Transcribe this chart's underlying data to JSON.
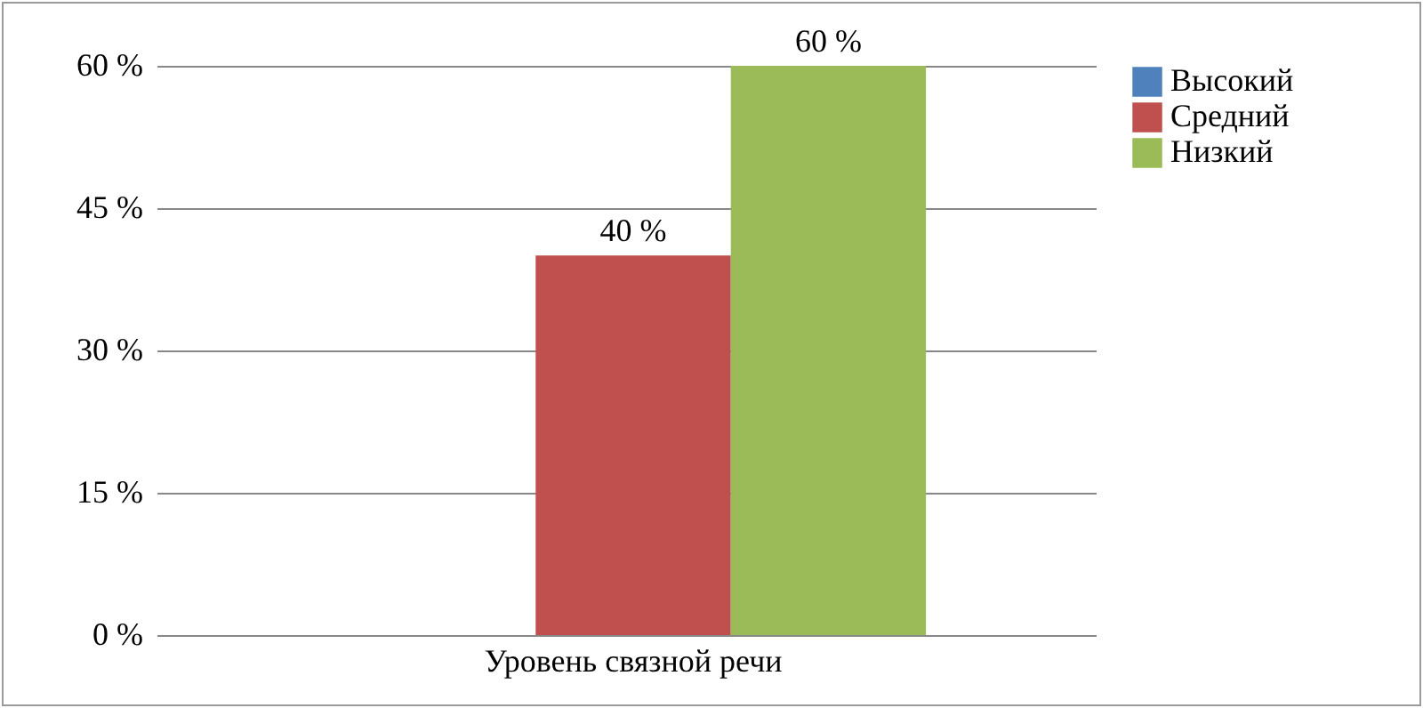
{
  "chart_data": {
    "type": "bar",
    "categories": [
      "Уровень связной речи"
    ],
    "series": [
      {
        "name": "Высокий",
        "color": "#4f81bd",
        "values": [
          0
        ],
        "value_labels": [
          null
        ]
      },
      {
        "name": "Средний",
        "color": "#c0504d",
        "values": [
          40
        ],
        "value_labels": [
          "40 %"
        ]
      },
      {
        "name": "Низкий",
        "color": "#9bbb59",
        "values": [
          60
        ],
        "value_labels": [
          "60 %"
        ]
      }
    ],
    "ylim": [
      0,
      60
    ],
    "yticks": [
      {
        "value": 0,
        "label": "0 %"
      },
      {
        "value": 15,
        "label": "15 %"
      },
      {
        "value": 30,
        "label": "30 %"
      },
      {
        "value": 45,
        "label": "45 %"
      },
      {
        "value": 60,
        "label": "60 %"
      }
    ],
    "grid": "y",
    "legend": "right"
  }
}
